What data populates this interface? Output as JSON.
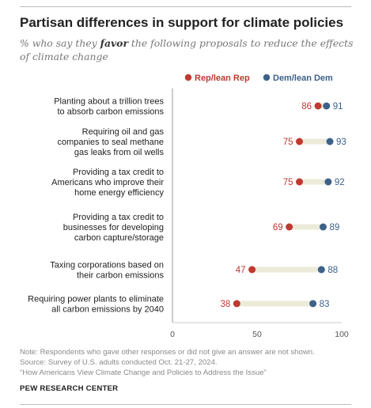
{
  "header": {
    "title": "Partisan differences in support for climate policies",
    "subtitle_pre": "% who say they ",
    "subtitle_em": "favor",
    "subtitle_post": " the following proposals to reduce the effects of climate change"
  },
  "colors": {
    "rep": "#bf3931",
    "dem": "#3d6189",
    "bar": "#ecebd9",
    "axis": "#999999",
    "label": "#222222"
  },
  "chart_data": {
    "type": "dot",
    "xlim": [
      0,
      100
    ],
    "ticks": [
      "0",
      "50",
      "100"
    ],
    "legend": {
      "position": "top-right"
    },
    "series": [
      {
        "name": "Rep/lean Rep",
        "key": "rep",
        "values": [
          86,
          75,
          75,
          69,
          47,
          38
        ]
      },
      {
        "name": "Dem/lean Dem",
        "key": "dem",
        "values": [
          91,
          93,
          92,
          89,
          88,
          83
        ]
      }
    ],
    "categories": [
      [
        "Planting about a trillion trees",
        "to absorb carbon emissions"
      ],
      [
        "Requiring oil and gas",
        "companies to seal methane",
        "gas leaks from oil wells"
      ],
      [
        "Providing a tax credit to",
        "Americans who improve their",
        "home energy efficiency"
      ],
      [
        "Providing a tax credit to",
        "businesses for developing",
        "carbon capture/storage"
      ],
      [
        "Taxing corporations based on",
        "their carbon emissions"
      ],
      [
        "Requiring power plants to eliminate",
        "all carbon emissions by 2040"
      ]
    ]
  },
  "footer": {
    "note": "Note: Respondents who gave other responses or did not give an answer are not shown.",
    "source": "Source: Survey of U.S. adults conducted Oct. 21-27, 2024.",
    "report": "“How Americans View Climate Change and Policies to Address the Issue”",
    "org": "PEW RESEARCH CENTER"
  }
}
